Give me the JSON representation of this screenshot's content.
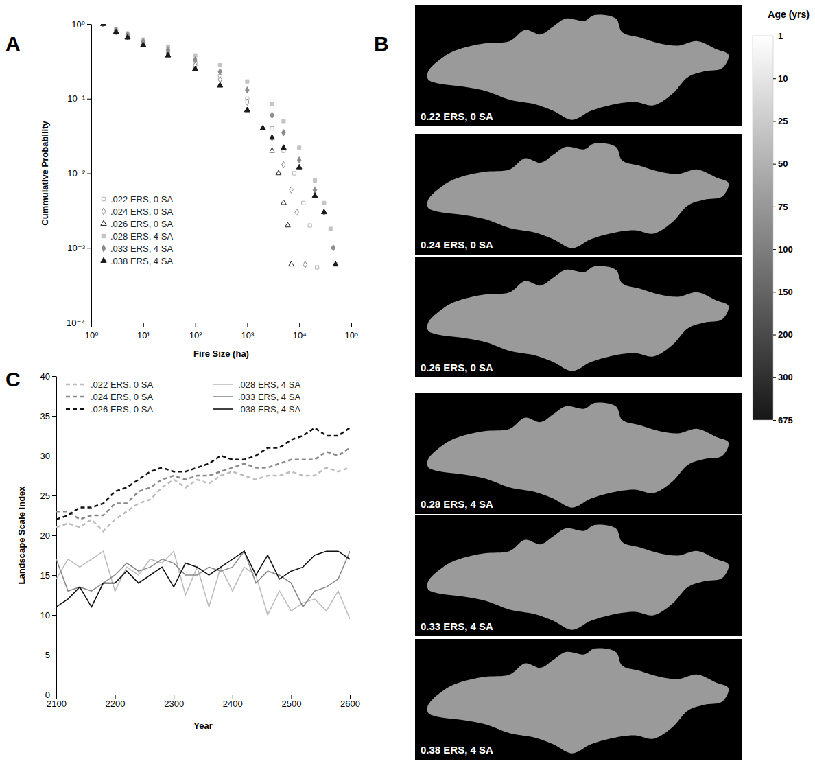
{
  "chart_data": [
    {
      "type": "scatter",
      "panel": "A",
      "x_label": "Fire Size (ha)",
      "y_label": "Cummulative Probability",
      "log": true,
      "legend": "lower left",
      "xlim": [
        1,
        100000
      ],
      "ylim": [
        0.0001,
        1
      ],
      "xticks": [
        {
          "value": 1,
          "label": "10⁰"
        },
        {
          "value": 10,
          "label": "10¹"
        },
        {
          "value": 100,
          "label": "10²"
        },
        {
          "value": 1000,
          "label": "10³"
        },
        {
          "value": 10000,
          "label": "10⁴"
        },
        {
          "value": 100000,
          "label": "10⁵"
        }
      ],
      "yticks": [
        {
          "value": 0.0001,
          "label": "10⁻⁴"
        },
        {
          "value": 0.001,
          "label": "10⁻³"
        },
        {
          "value": 0.01,
          "label": "10⁻²"
        },
        {
          "value": 0.1,
          "label": "10⁻¹"
        },
        {
          "value": 1,
          "label": "10⁰"
        }
      ],
      "series": [
        {
          "name": ".022 ERS, 0 SA",
          "color": "#b4b4b4",
          "marker": "open-square",
          "x": [
            1.7,
            3,
            5,
            10,
            30,
            100,
            300,
            1000,
            3000,
            5000,
            8000,
            12000,
            16000,
            22000
          ],
          "values": [
            1,
            0.8,
            0.7,
            0.56,
            0.42,
            0.3,
            0.2,
            0.1,
            0.04,
            0.02,
            0.01,
            0.004,
            0.002,
            0.00055
          ]
        },
        {
          "name": ".024 ERS, 0 SA",
          "color": "#8c8c8c",
          "marker": "open-diamond",
          "x": [
            1.7,
            3,
            5,
            10,
            30,
            100,
            300,
            1000,
            3000,
            5000,
            7000,
            9000,
            13000
          ],
          "values": [
            1,
            0.79,
            0.68,
            0.54,
            0.4,
            0.28,
            0.18,
            0.09,
            0.03,
            0.013,
            0.006,
            0.003,
            0.0006
          ]
        },
        {
          "name": ".026 ERS, 0 SA",
          "color": "#1a1a1a",
          "marker": "open-triangle",
          "x": [
            1.7,
            3,
            5,
            10,
            30,
            100,
            300,
            1000,
            2000,
            3000,
            4000,
            5000,
            6000,
            7000
          ],
          "values": [
            1,
            0.78,
            0.66,
            0.52,
            0.38,
            0.25,
            0.15,
            0.07,
            0.04,
            0.02,
            0.01,
            0.004,
            0.002,
            0.0006
          ]
        },
        {
          "name": ".028 ERS, 4 SA",
          "color": "#c4c4c4",
          "marker": "square",
          "x": [
            1.7,
            3,
            5,
            10,
            30,
            100,
            300,
            1000,
            3000,
            5000,
            10000,
            20000,
            30000,
            40000,
            50000
          ],
          "values": [
            1,
            0.85,
            0.75,
            0.62,
            0.5,
            0.38,
            0.28,
            0.17,
            0.085,
            0.05,
            0.022,
            0.008,
            0.004,
            0.0018,
            0.0006
          ]
        },
        {
          "name": ".033 ERS, 4 SA",
          "color": "#8c8c8c",
          "marker": "diamond",
          "x": [
            1.7,
            3,
            5,
            10,
            30,
            100,
            300,
            1000,
            3000,
            5000,
            10000,
            20000,
            30000,
            45000
          ],
          "values": [
            1,
            0.82,
            0.72,
            0.58,
            0.45,
            0.33,
            0.23,
            0.13,
            0.06,
            0.035,
            0.015,
            0.006,
            0.003,
            0.001
          ]
        },
        {
          "name": ".038 ERS, 4 SA",
          "color": "#1a1a1a",
          "marker": "triangle",
          "x": [
            1.7,
            3,
            5,
            10,
            30,
            100,
            300,
            1000,
            2000,
            3000,
            5000,
            10000,
            20000,
            30000,
            50000
          ],
          "values": [
            1,
            0.78,
            0.66,
            0.52,
            0.38,
            0.25,
            0.15,
            0.07,
            0.04,
            0.03,
            0.022,
            0.012,
            0.005,
            0.003,
            0.0006
          ]
        }
      ]
    },
    {
      "type": "map",
      "panel": "B",
      "maps": [
        "0.22 ERS, 0 SA",
        "0.24 ERS, 0 SA",
        "0.26 ERS, 0 SA",
        "0.28 ERS, 4 SA",
        "0.33 ERS, 4 SA",
        "0.38 ERS, 4 SA"
      ],
      "colorbar": {
        "title": "Age (yrs)",
        "range": [
          1,
          675
        ],
        "ticks": [
          1,
          10,
          25,
          50,
          75,
          100,
          150,
          200,
          300,
          675
        ]
      }
    },
    {
      "type": "line",
      "panel": "C",
      "x_label": "Year",
      "y_label": "Landscape Scale Index",
      "legend": "top",
      "xlim": [
        2100,
        2600
      ],
      "ylim": [
        0,
        40
      ],
      "xticks": [
        2100,
        2200,
        2300,
        2400,
        2500,
        2600
      ],
      "yticks": [
        0,
        5,
        10,
        15,
        20,
        25,
        30,
        35,
        40
      ],
      "x": [
        2100,
        2120,
        2140,
        2160,
        2180,
        2200,
        2220,
        2240,
        2260,
        2280,
        2300,
        2320,
        2340,
        2360,
        2380,
        2400,
        2420,
        2440,
        2460,
        2480,
        2500,
        2520,
        2540,
        2560,
        2580,
        2600
      ],
      "series": [
        {
          "name": ".022 ERS, 0 SA",
          "color": "#bdbdbd",
          "line_style": "dashed",
          "values": [
            21,
            21.5,
            21,
            22,
            20.5,
            22,
            23,
            24,
            24.5,
            26,
            27,
            26,
            27,
            26.5,
            27.5,
            28,
            27.5,
            27,
            27.5,
            27.5,
            28,
            27.5,
            27.5,
            28.5,
            28,
            28.5
          ]
        },
        {
          "name": ".024 ERS, 0 SA",
          "color": "#8a8a8a",
          "line_style": "dashed",
          "values": [
            23,
            23,
            22,
            22.5,
            22.5,
            24,
            24,
            25.5,
            26,
            27,
            27.5,
            27,
            27.5,
            27.5,
            28,
            28.5,
            29,
            28.5,
            28.5,
            29,
            29.5,
            29.5,
            29.5,
            30.5,
            30,
            31
          ]
        },
        {
          "name": ".026 ERS, 0 SA",
          "color": "#111111",
          "line_style": "dashed",
          "values": [
            22,
            22.5,
            23.5,
            23.5,
            24,
            25.5,
            26,
            27,
            28,
            28.5,
            28,
            28,
            28.5,
            29,
            30,
            29.5,
            29.5,
            30,
            31,
            31,
            32,
            32.5,
            33.5,
            32.5,
            32.5,
            33.5
          ]
        },
        {
          "name": ".028 ERS, 4 SA",
          "color": "#bdbdbd",
          "line_style": "solid",
          "values": [
            14.5,
            17,
            16,
            17,
            18,
            13,
            16,
            15,
            17,
            16.5,
            18,
            12.5,
            16,
            11,
            16,
            13,
            16,
            15,
            10,
            13,
            10.5,
            11.5,
            12,
            10.5,
            13,
            9.5
          ]
        },
        {
          "name": ".033 ERS, 4 SA",
          "color": "#8a8a8a",
          "line_style": "solid",
          "values": [
            17,
            13,
            13.5,
            13,
            14,
            15,
            16.5,
            15.5,
            16,
            17,
            16.5,
            15,
            15,
            16,
            15.5,
            16,
            18,
            14,
            15.5,
            15,
            14,
            11,
            13,
            13.5,
            14.5,
            18
          ]
        },
        {
          "name": ".038 ERS, 4 SA",
          "color": "#111111",
          "line_style": "solid",
          "values": [
            11,
            12,
            13.5,
            11,
            14,
            14,
            15.5,
            14,
            15,
            16,
            13.5,
            16.5,
            16,
            15,
            16,
            17,
            18,
            15,
            17.5,
            14.5,
            15.5,
            16,
            17.5,
            18,
            18,
            17
          ]
        }
      ]
    }
  ]
}
